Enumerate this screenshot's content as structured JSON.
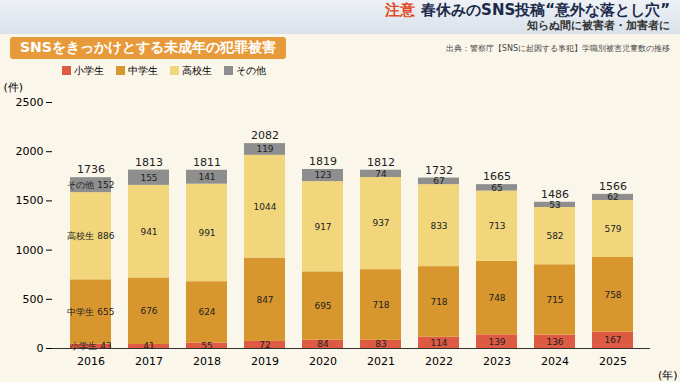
{
  "chart_data": {
    "type": "bar",
    "title": "SNSをきっかけとする未成年の犯罪被害",
    "annotations": [
      "注意",
      "春休みのSNS投稿“意外な落とし穴”",
      "知らぬ間に被害者・加害者に",
      "出典：警察庁【SNSに起因する事犯】学職別被害児童数の推移"
    ],
    "x_label": "(年)",
    "y_label": "(件)",
    "categories": [
      "2016",
      "2017",
      "2018",
      "2019",
      "2020",
      "2021",
      "2022",
      "2023",
      "2024",
      "2025"
    ],
    "series": [
      {
        "name": "小学生",
        "color": "#de5a43",
        "values": [
          43,
          41,
          55,
          72,
          84,
          83,
          114,
          139,
          136,
          167
        ]
      },
      {
        "name": "中学生",
        "color": "#d8972e",
        "values": [
          655,
          676,
          624,
          847,
          695,
          718,
          718,
          748,
          715,
          758
        ]
      },
      {
        "name": "高校生",
        "color": "#f1d67c",
        "values": [
          886,
          941,
          991,
          1044,
          917,
          937,
          833,
          713,
          582,
          579
        ]
      },
      {
        "name": "その他",
        "color": "#8e8e8e",
        "values": [
          152,
          155,
          141,
          119,
          123,
          74,
          67,
          65,
          53,
          62
        ]
      }
    ],
    "totals": [
      1736,
      1813,
      1811,
      2082,
      1819,
      1812,
      1732,
      1665,
      1486,
      1566
    ],
    "ylim": [
      0,
      2500
    ],
    "yticks": [
      0,
      500,
      1000,
      1500,
      2000,
      2500
    ],
    "stacked": true,
    "data_labels": true,
    "grid": false,
    "legend": "top-left"
  }
}
